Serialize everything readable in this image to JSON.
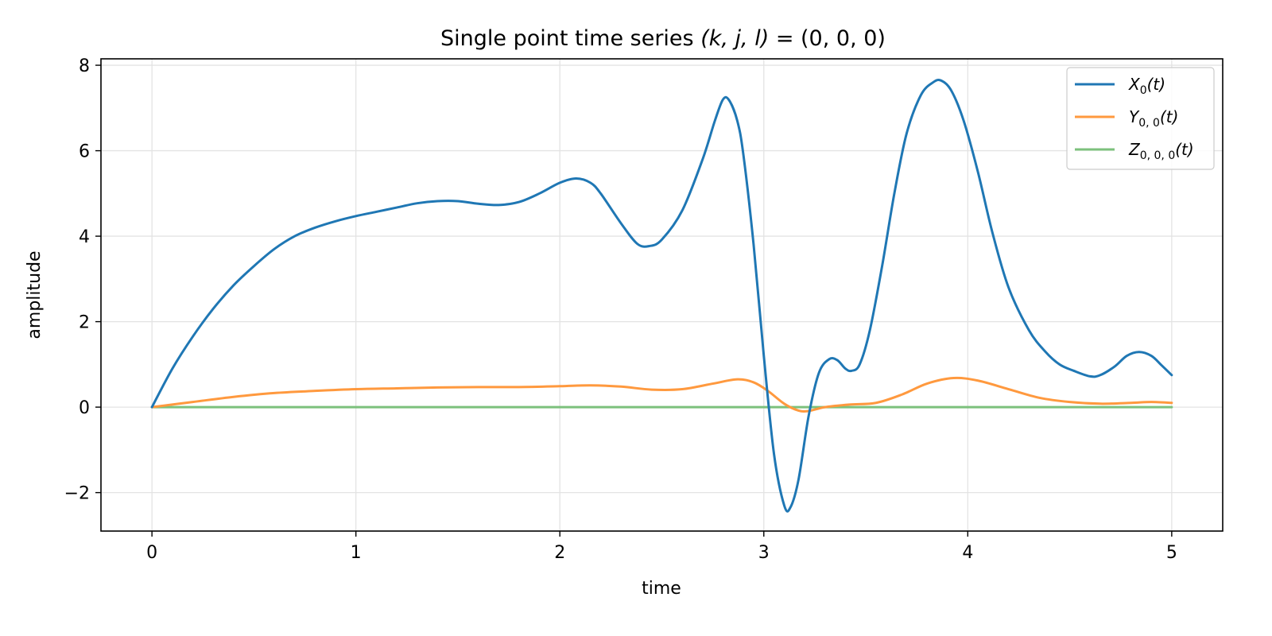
{
  "chart_data": {
    "type": "line",
    "title": {
      "text": "Single point time series ",
      "math_vars": "(k, j, l)",
      "math_eq": " = (0, 0, 0)"
    },
    "xlabel": "time",
    "ylabel": "amplitude",
    "xlim": [
      -0.25,
      5.25
    ],
    "ylim": [
      -2.9,
      8.15
    ],
    "xticks": [
      0,
      1,
      2,
      3,
      4,
      5
    ],
    "yticks": [
      -2,
      0,
      2,
      4,
      6,
      8
    ],
    "xtick_labels": [
      "0",
      "1",
      "2",
      "3",
      "4",
      "5"
    ],
    "ytick_labels": [
      "−2",
      "0",
      "2",
      "4",
      "6",
      "8"
    ],
    "grid": true,
    "legend_position": "top-right",
    "series": [
      {
        "name": "X",
        "subscript": "0",
        "suffix": "(t)",
        "color": "#1f77b4",
        "points": [
          [
            0.0,
            0.0
          ],
          [
            0.1,
            0.9
          ],
          [
            0.2,
            1.65
          ],
          [
            0.3,
            2.3
          ],
          [
            0.4,
            2.85
          ],
          [
            0.5,
            3.3
          ],
          [
            0.6,
            3.7
          ],
          [
            0.7,
            4.0
          ],
          [
            0.8,
            4.2
          ],
          [
            0.9,
            4.35
          ],
          [
            1.0,
            4.47
          ],
          [
            1.1,
            4.57
          ],
          [
            1.2,
            4.67
          ],
          [
            1.3,
            4.77
          ],
          [
            1.4,
            4.82
          ],
          [
            1.5,
            4.82
          ],
          [
            1.6,
            4.76
          ],
          [
            1.7,
            4.73
          ],
          [
            1.8,
            4.8
          ],
          [
            1.9,
            5.0
          ],
          [
            2.0,
            5.25
          ],
          [
            2.08,
            5.35
          ],
          [
            2.15,
            5.25
          ],
          [
            2.2,
            5.0
          ],
          [
            2.3,
            4.3
          ],
          [
            2.38,
            3.82
          ],
          [
            2.44,
            3.77
          ],
          [
            2.5,
            3.92
          ],
          [
            2.6,
            4.6
          ],
          [
            2.7,
            5.8
          ],
          [
            2.76,
            6.7
          ],
          [
            2.8,
            7.2
          ],
          [
            2.83,
            7.18
          ],
          [
            2.87,
            6.7
          ],
          [
            2.9,
            5.9
          ],
          [
            2.95,
            3.8
          ],
          [
            3.0,
            1.2
          ],
          [
            3.05,
            -1.1
          ],
          [
            3.1,
            -2.3
          ],
          [
            3.13,
            -2.35
          ],
          [
            3.17,
            -1.7
          ],
          [
            3.22,
            -0.2
          ],
          [
            3.27,
            0.8
          ],
          [
            3.32,
            1.12
          ],
          [
            3.36,
            1.1
          ],
          [
            3.4,
            0.9
          ],
          [
            3.43,
            0.85
          ],
          [
            3.47,
            1.0
          ],
          [
            3.52,
            1.8
          ],
          [
            3.58,
            3.3
          ],
          [
            3.64,
            5.0
          ],
          [
            3.7,
            6.4
          ],
          [
            3.77,
            7.3
          ],
          [
            3.83,
            7.6
          ],
          [
            3.87,
            7.64
          ],
          [
            3.92,
            7.4
          ],
          [
            3.98,
            6.7
          ],
          [
            4.05,
            5.5
          ],
          [
            4.12,
            4.1
          ],
          [
            4.2,
            2.8
          ],
          [
            4.3,
            1.8
          ],
          [
            4.38,
            1.3
          ],
          [
            4.45,
            1.0
          ],
          [
            4.52,
            0.85
          ],
          [
            4.6,
            0.72
          ],
          [
            4.65,
            0.75
          ],
          [
            4.72,
            0.95
          ],
          [
            4.78,
            1.2
          ],
          [
            4.84,
            1.29
          ],
          [
            4.9,
            1.2
          ],
          [
            4.95,
            0.98
          ],
          [
            5.0,
            0.75
          ]
        ]
      },
      {
        "name": "Y",
        "subscript": "0, 0",
        "suffix": "(t)",
        "color": "#ff993e",
        "points": [
          [
            0.0,
            0.0
          ],
          [
            0.2,
            0.12
          ],
          [
            0.4,
            0.24
          ],
          [
            0.6,
            0.33
          ],
          [
            0.8,
            0.38
          ],
          [
            1.0,
            0.42
          ],
          [
            1.2,
            0.44
          ],
          [
            1.4,
            0.46
          ],
          [
            1.6,
            0.47
          ],
          [
            1.8,
            0.47
          ],
          [
            2.0,
            0.49
          ],
          [
            2.15,
            0.51
          ],
          [
            2.3,
            0.48
          ],
          [
            2.45,
            0.41
          ],
          [
            2.6,
            0.42
          ],
          [
            2.75,
            0.55
          ],
          [
            2.87,
            0.65
          ],
          [
            2.95,
            0.58
          ],
          [
            3.02,
            0.38
          ],
          [
            3.1,
            0.08
          ],
          [
            3.17,
            -0.08
          ],
          [
            3.22,
            -0.09
          ],
          [
            3.3,
            0.0
          ],
          [
            3.42,
            0.06
          ],
          [
            3.55,
            0.1
          ],
          [
            3.68,
            0.3
          ],
          [
            3.8,
            0.55
          ],
          [
            3.93,
            0.68
          ],
          [
            4.05,
            0.62
          ],
          [
            4.2,
            0.42
          ],
          [
            4.35,
            0.22
          ],
          [
            4.5,
            0.12
          ],
          [
            4.65,
            0.08
          ],
          [
            4.8,
            0.1
          ],
          [
            4.9,
            0.12
          ],
          [
            5.0,
            0.1
          ]
        ]
      },
      {
        "name": "Z",
        "subscript": "0, 0, 0",
        "suffix": "(t)",
        "color": "#7cc17c",
        "points": [
          [
            0.0,
            0.0
          ],
          [
            5.0,
            0.0
          ]
        ]
      }
    ]
  }
}
